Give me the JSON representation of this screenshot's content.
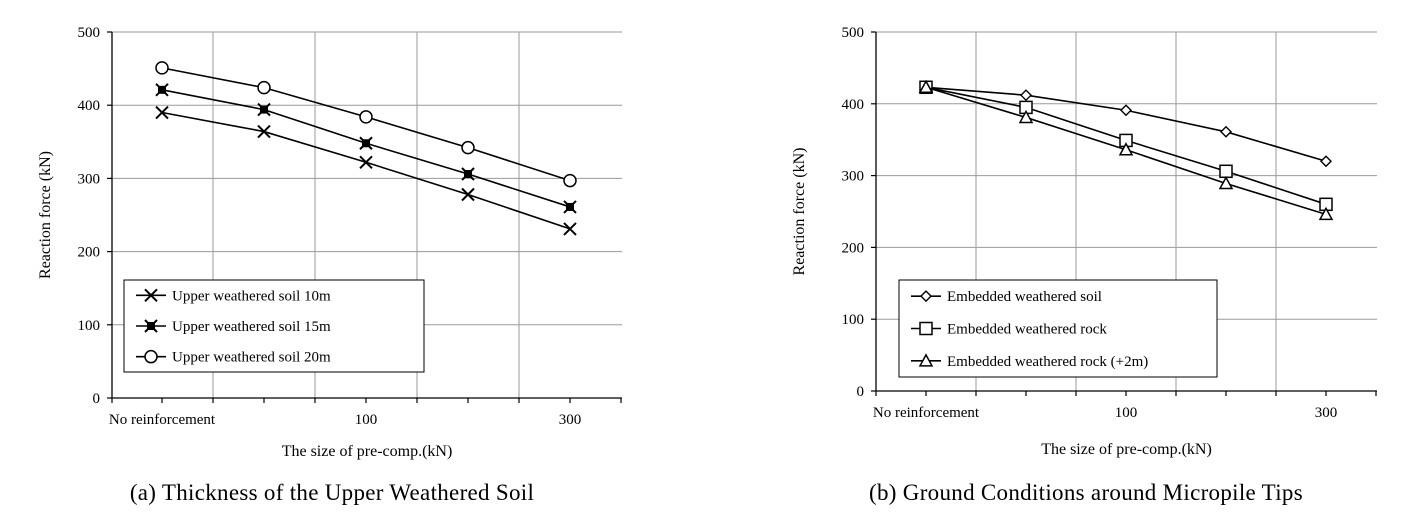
{
  "chart_data": [
    {
      "type": "line",
      "caption": "(a) Thickness of the Upper Weathered Soil",
      "xlabel": "The size of pre-comp.(kN)",
      "ylabel": "Reaction force (kN)",
      "ylim": [
        0,
        500
      ],
      "yticks": [
        0,
        100,
        200,
        300,
        400,
        500
      ],
      "categories": [
        "No reinforcement",
        "",
        "100",
        "",
        "300"
      ],
      "grid": true,
      "legend_position": "lower-left",
      "series": [
        {
          "name": "Upper weathered soil 10m",
          "marker": "x",
          "values": [
            390,
            364,
            322,
            278,
            231
          ]
        },
        {
          "name": "Upper weathered soil 15m",
          "marker": "filled-square-x",
          "values": [
            421,
            394,
            348,
            306,
            261
          ]
        },
        {
          "name": "Upper weathered soil 20m",
          "marker": "circle",
          "values": [
            451,
            424,
            384,
            342,
            297
          ]
        }
      ]
    },
    {
      "type": "line",
      "caption": "(b) Ground Conditions around Micropile Tips",
      "xlabel": "The size of pre-comp.(kN)",
      "ylabel": "Reaction force (kN)",
      "ylim": [
        0,
        500
      ],
      "yticks": [
        0,
        100,
        200,
        300,
        400,
        500
      ],
      "categories": [
        "No reinforcement",
        "",
        "100",
        "",
        "300"
      ],
      "grid": true,
      "legend_position": "lower-left",
      "series": [
        {
          "name": "Embedded weathered soil",
          "marker": "diamond",
          "values": [
            423,
            412,
            391,
            361,
            320
          ]
        },
        {
          "name": "Embedded weathered rock",
          "marker": "square",
          "values": [
            423,
            395,
            349,
            306,
            260
          ]
        },
        {
          "name": "Embedded weathered rock (+2m)",
          "marker": "triangle",
          "values": [
            423,
            381,
            336,
            289,
            246
          ]
        }
      ]
    }
  ]
}
